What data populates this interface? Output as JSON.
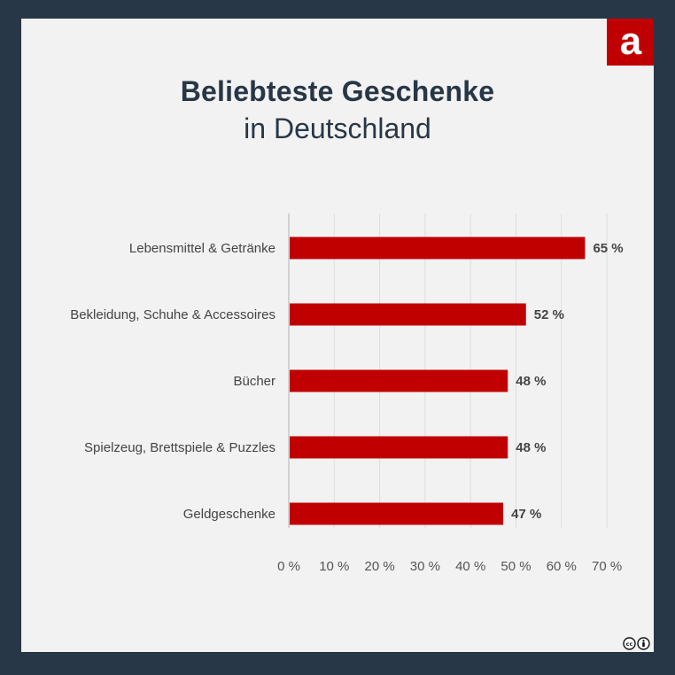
{
  "title": "Beliebteste Geschenke",
  "subtitle": "in Deutschland",
  "logo": {
    "letter": "a",
    "color": "#c00000"
  },
  "license_icons": [
    "cc-icon",
    "attribution-icon"
  ],
  "colors": {
    "bar": "#c00000",
    "frame": "#283747",
    "background": "#f2f2f2",
    "text": "#444444"
  },
  "chart_data": {
    "type": "bar",
    "orientation": "horizontal",
    "categories": [
      "Lebensmittel & Getränke",
      "Bekleidung, Schuhe & Accessoires",
      "Bücher",
      "Spielzeug, Brettspiele & Puzzles",
      "Geldgeschenke"
    ],
    "values": [
      65,
      52,
      48,
      48,
      47
    ],
    "data_labels": [
      "65 %",
      "52 %",
      "48 %",
      "48 %",
      "47 %"
    ],
    "x_ticks": [
      "0 %",
      "10 %",
      "20 %",
      "30 %",
      "40 %",
      "50 %",
      "60 %",
      "70 %"
    ],
    "xlim": [
      0,
      70
    ],
    "grid": true,
    "legend": "none"
  }
}
